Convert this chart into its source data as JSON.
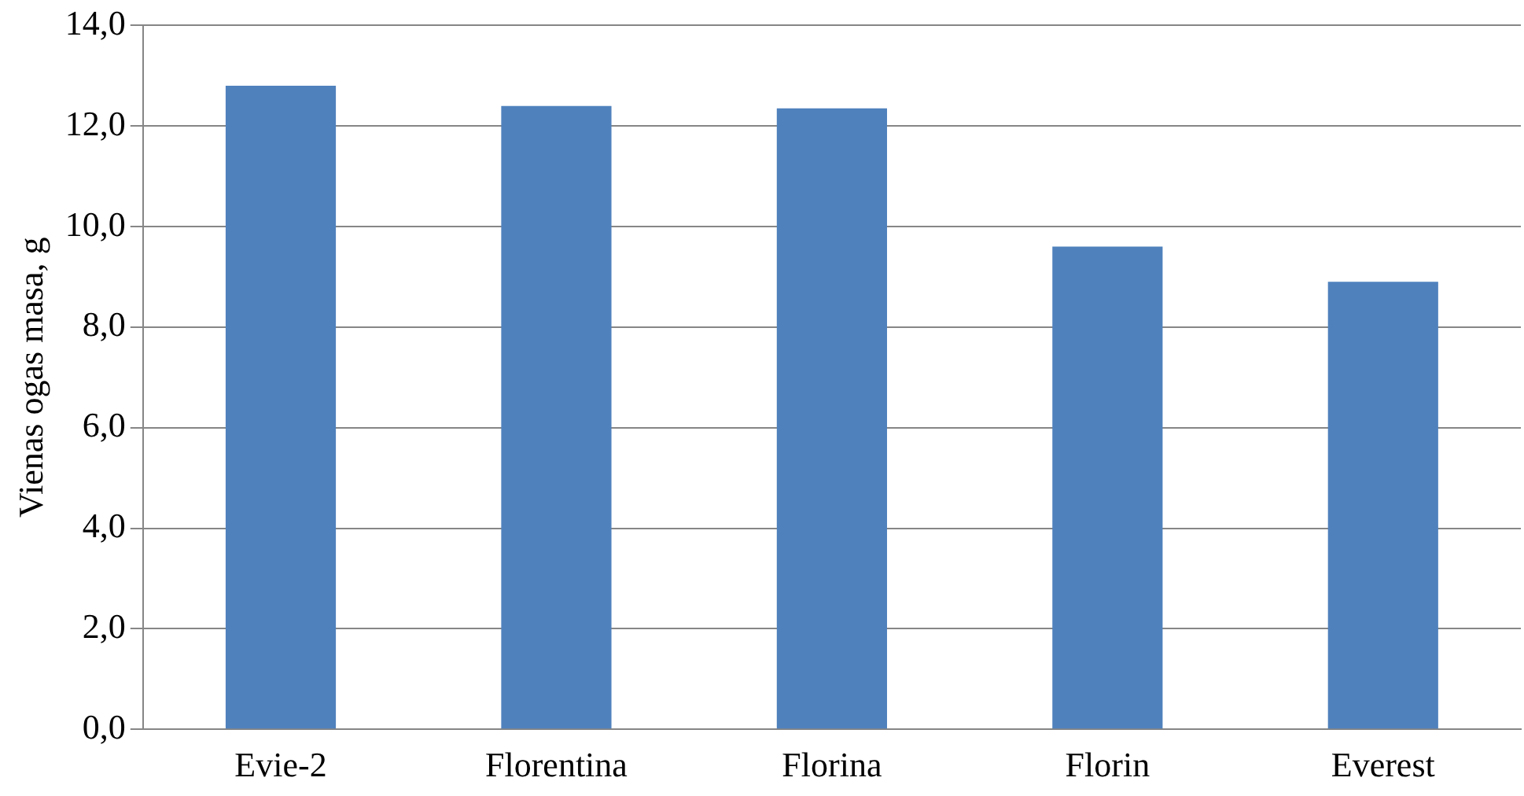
{
  "chart_data": {
    "type": "bar",
    "ylabel": "Vienas ogas masa, g",
    "categories": [
      "Evie-2",
      "Florentina",
      "Florina",
      "Florin",
      "Everest"
    ],
    "values": [
      12.8,
      12.4,
      12.35,
      9.6,
      8.9
    ],
    "color": "#4f81bd",
    "ylim": [
      0,
      14
    ],
    "yticks": [
      {
        "value": 0,
        "label": "0,0"
      },
      {
        "value": 2,
        "label": "2,0"
      },
      {
        "value": 4,
        "label": "4,0"
      },
      {
        "value": 6,
        "label": "6,0"
      },
      {
        "value": 8,
        "label": "8,0"
      },
      {
        "value": 10,
        "label": "10,0"
      },
      {
        "value": 12,
        "label": "12,0"
      },
      {
        "value": 14,
        "label": "14,0"
      }
    ],
    "grid": "y",
    "legend": false
  }
}
